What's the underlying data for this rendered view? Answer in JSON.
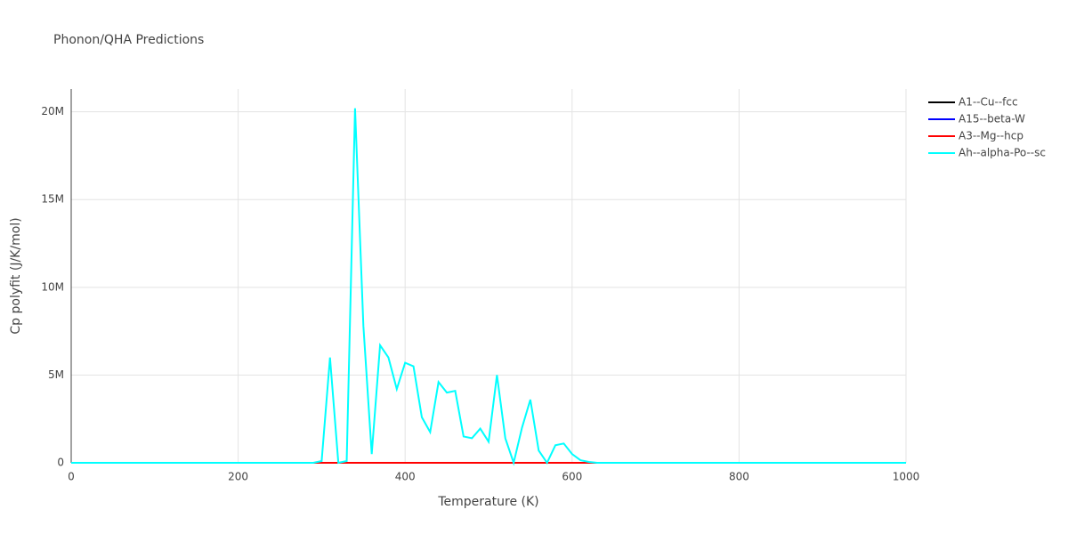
{
  "chart_data": {
    "type": "line",
    "title": "Phonon/QHA Predictions",
    "x_label": "Temperature (K)",
    "y_label": "Cp polyfit (J/K/mol)",
    "x": [
      0,
      10,
      20,
      30,
      40,
      50,
      60,
      70,
      80,
      90,
      100,
      110,
      120,
      130,
      140,
      150,
      160,
      170,
      180,
      190,
      200,
      210,
      220,
      230,
      240,
      250,
      260,
      270,
      280,
      290,
      300,
      310,
      320,
      330,
      340,
      350,
      360,
      370,
      380,
      390,
      400,
      410,
      420,
      430,
      440,
      450,
      460,
      470,
      480,
      490,
      500,
      510,
      520,
      530,
      540,
      550,
      560,
      570,
      580,
      590,
      600,
      610,
      620,
      630,
      640,
      650,
      660,
      670,
      680,
      690,
      700,
      710,
      720,
      730,
      740,
      750,
      760,
      770,
      780,
      790,
      800,
      810,
      820,
      830,
      840,
      850,
      860,
      870,
      880,
      890,
      900,
      910,
      920,
      930,
      940,
      950,
      960,
      970,
      980,
      990,
      1000
    ],
    "series": [
      {
        "name": "A1--Cu--fcc",
        "color": "#000000",
        "values": [
          0,
          0,
          0,
          0,
          0,
          0,
          0,
          0,
          0,
          0,
          0,
          0,
          0,
          0,
          0,
          0,
          0,
          0,
          0,
          0,
          0,
          0,
          0,
          0,
          0,
          0,
          0,
          0,
          0,
          0,
          0,
          0,
          0,
          0,
          0,
          0,
          0,
          0,
          0,
          0,
          0,
          0,
          0,
          0,
          0,
          0,
          0,
          0,
          0,
          0,
          0,
          0,
          0,
          0,
          0,
          0,
          0,
          0,
          0,
          0,
          0,
          0,
          0,
          0,
          0,
          0,
          0,
          0,
          0,
          0,
          0,
          0,
          0,
          0,
          0,
          0,
          0,
          0,
          0,
          0,
          0,
          0,
          0,
          0,
          0,
          0,
          0,
          0,
          0,
          0,
          0,
          0,
          0,
          0,
          0,
          0,
          0,
          0,
          0,
          0,
          0
        ]
      },
      {
        "name": "A15--beta-W",
        "color": "#0000ff",
        "values": [
          0,
          0,
          0,
          0,
          0,
          0,
          0,
          0,
          0,
          0,
          0,
          0,
          0,
          0,
          0,
          0,
          0,
          0,
          0,
          0,
          0,
          0,
          0,
          0,
          0,
          0,
          0,
          0,
          0,
          0,
          0,
          0,
          0,
          0,
          0,
          0,
          0,
          0,
          0,
          0,
          0,
          0,
          0,
          0,
          0,
          0,
          0,
          0,
          0,
          0,
          0,
          0,
          0,
          0,
          0,
          0,
          0,
          0,
          0,
          0,
          0,
          0,
          0,
          0,
          0,
          0,
          0,
          0,
          0,
          0,
          0,
          0,
          0,
          0,
          0,
          0,
          0,
          0,
          0,
          0,
          0,
          0,
          0,
          0,
          0,
          0,
          0,
          0,
          0,
          0,
          0,
          0,
          0,
          0,
          0,
          0,
          0,
          0,
          0,
          0,
          0
        ]
      },
      {
        "name": "A3--Mg--hcp",
        "color": "#ff0000",
        "values": [
          0,
          0,
          0,
          0,
          0,
          0,
          0,
          0,
          0,
          0,
          0,
          0,
          0,
          0,
          0,
          0,
          0,
          0,
          0,
          0,
          0,
          0,
          0,
          0,
          0,
          0,
          0,
          0,
          0,
          0,
          0,
          0,
          0,
          0,
          0,
          0,
          0,
          0,
          0,
          0,
          0,
          0,
          0,
          0,
          0,
          0,
          0,
          0,
          0,
          0,
          0,
          0,
          0,
          0,
          0,
          0,
          0,
          0,
          0,
          0,
          0,
          0,
          0,
          0,
          0,
          0,
          0,
          0,
          0,
          0,
          0,
          0,
          0,
          0,
          0,
          0,
          0,
          0,
          0,
          0,
          0,
          0,
          0,
          0,
          0,
          0,
          0,
          0,
          0,
          0,
          0,
          0,
          0,
          0,
          0,
          0,
          0,
          0,
          0,
          0,
          0
        ]
      },
      {
        "name": "Ah--alpha-Po--sc",
        "color": "#00ffff",
        "values": [
          0,
          0,
          0,
          0,
          0,
          0,
          0,
          0,
          0,
          0,
          0,
          0,
          0,
          0,
          0,
          0,
          0,
          0,
          0,
          0,
          0,
          0,
          0,
          0,
          0,
          0,
          0,
          0,
          0,
          0,
          100000,
          6000000,
          0,
          100000,
          20200000,
          7800000,
          500000,
          6700000,
          6000000,
          4200000,
          5700000,
          5500000,
          2600000,
          1750000,
          4600000,
          4000000,
          4100000,
          1500000,
          1400000,
          1950000,
          1200000,
          5000000,
          1400000,
          0,
          2000000,
          3600000,
          700000,
          0,
          1000000,
          1100000,
          500000,
          150000,
          50000,
          0,
          0,
          0,
          0,
          0,
          0,
          0,
          0,
          0,
          0,
          0,
          0,
          0,
          0,
          0,
          0,
          0,
          0,
          0,
          0,
          0,
          0,
          0,
          0,
          0,
          0,
          0,
          0,
          0,
          0,
          0,
          0,
          0,
          0,
          0,
          0,
          0,
          0
        ]
      }
    ],
    "xlim": [
      0,
      1000
    ],
    "xticks": [
      0,
      200,
      400,
      600,
      800,
      1000
    ],
    "ylim": [
      0,
      21300000
    ],
    "yticks": [
      0,
      {
        "value": 5000000,
        "label": "5M"
      },
      {
        "value": 10000000,
        "label": "10M"
      },
      {
        "value": 15000000,
        "label": "15M"
      },
      {
        "value": 20000000,
        "label": "20M"
      }
    ],
    "grid": true
  }
}
